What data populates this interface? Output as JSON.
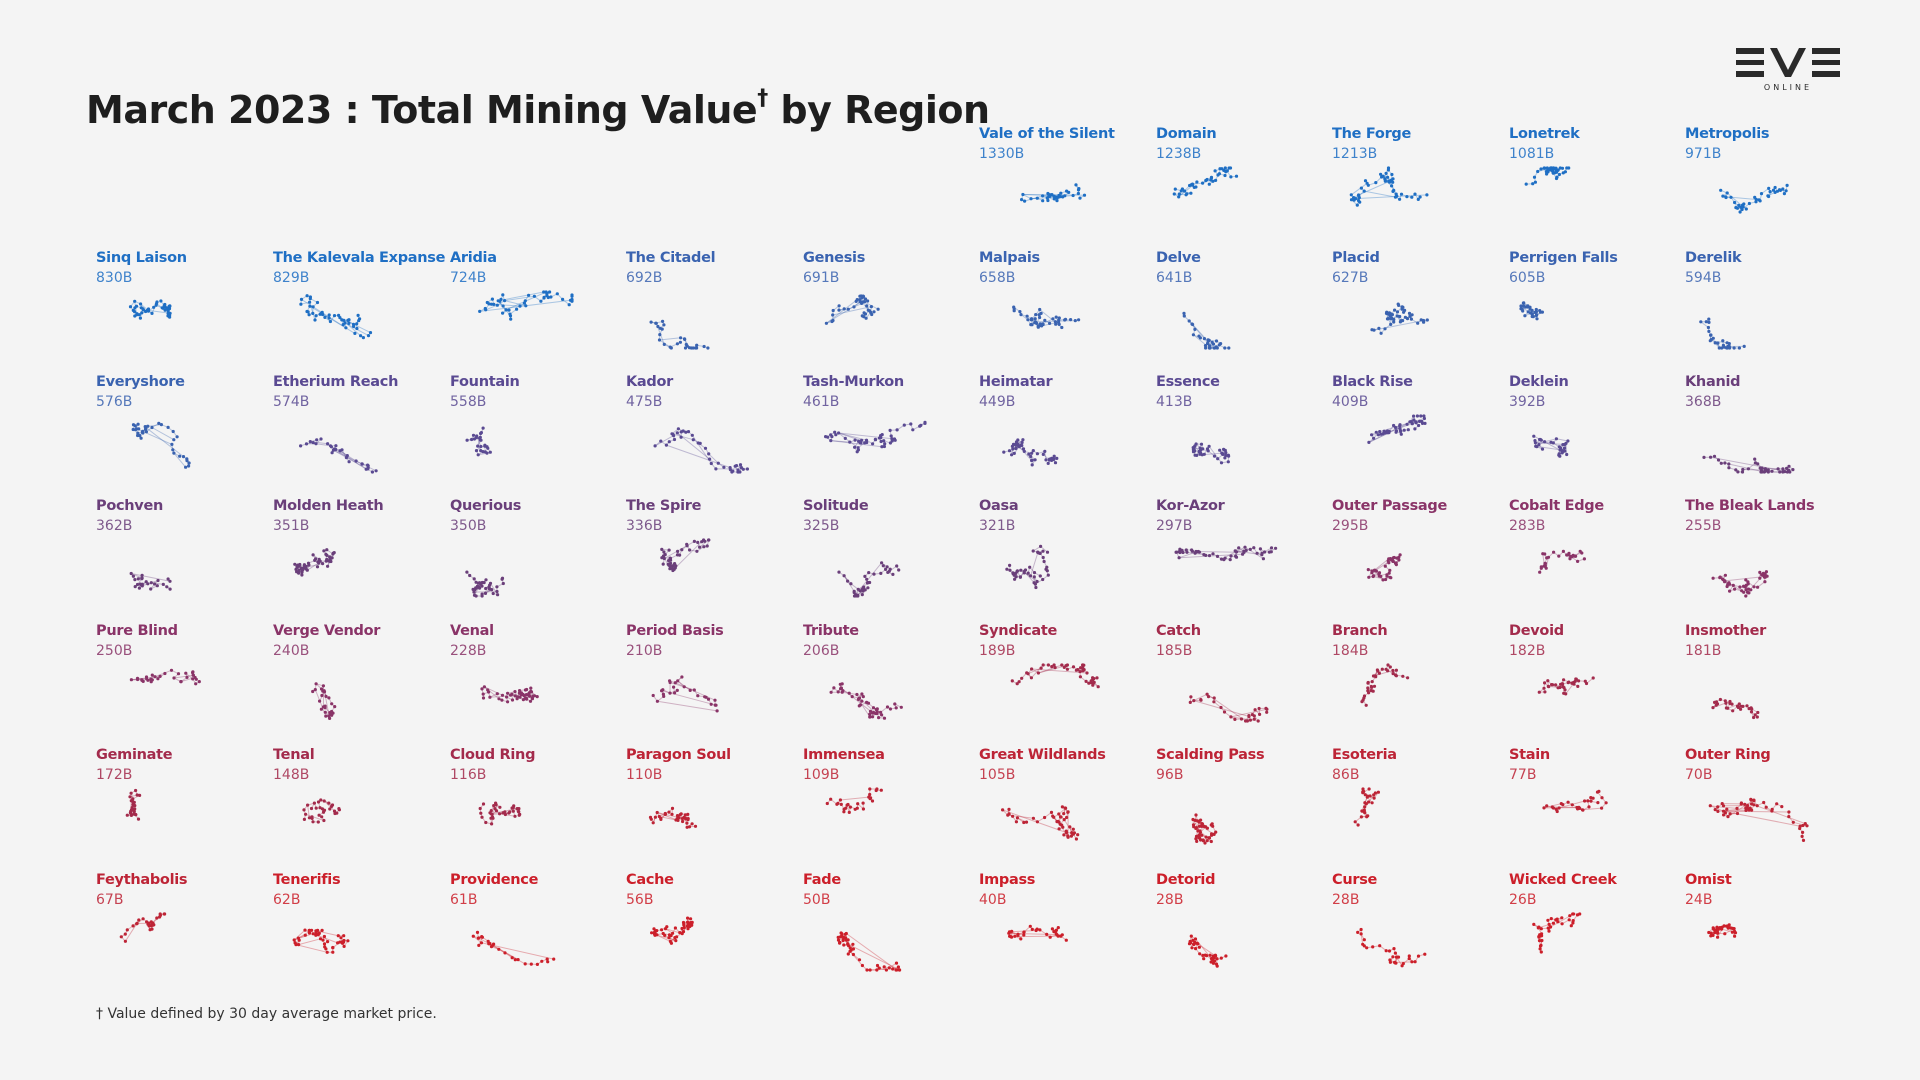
{
  "title": {
    "main": "March 2023 : Total Mining Value",
    "dagger": "†",
    "tail": " by Region"
  },
  "logo": {
    "text": "EVE",
    "sub": "ONLINE",
    "name": "eve-online-logo"
  },
  "footnote": "† Value defined by 30 day average market price.",
  "colors": {
    "background": "#f4f4f4",
    "title": "#1e1e1e",
    "scale": [
      "#1f6fc4",
      "#3a63b0",
      "#5a4a92",
      "#6a3f7a",
      "#8a3468",
      "#a32b4c",
      "#bd2436",
      "#cc1f2a"
    ],
    "edge_opacity": 0.35
  },
  "chart_data": {
    "type": "small-multiples",
    "title": "March 2023 : Total Mining Value† by Region",
    "unit": "B",
    "regions": [
      {
        "name": "Vale of the Silent",
        "value_label": "1330B",
        "value": 1330
      },
      {
        "name": "Domain",
        "value_label": "1238B",
        "value": 1238
      },
      {
        "name": "The Forge",
        "value_label": "1213B",
        "value": 1213
      },
      {
        "name": "Lonetrek",
        "value_label": "1081B",
        "value": 1081
      },
      {
        "name": "Metropolis",
        "value_label": "971B",
        "value": 971
      },
      {
        "name": "Sinq Laison",
        "value_label": "830B",
        "value": 830
      },
      {
        "name": "The Kalevala Expanse",
        "value_label": "829B",
        "value": 829
      },
      {
        "name": "Aridia",
        "value_label": "724B",
        "value": 724
      },
      {
        "name": "The Citadel",
        "value_label": "692B",
        "value": 692
      },
      {
        "name": "Genesis",
        "value_label": "691B",
        "value": 691
      },
      {
        "name": "Malpais",
        "value_label": "658B",
        "value": 658
      },
      {
        "name": "Delve",
        "value_label": "641B",
        "value": 641
      },
      {
        "name": "Placid",
        "value_label": "627B",
        "value": 627
      },
      {
        "name": "Perrigen Falls",
        "value_label": "605B",
        "value": 605
      },
      {
        "name": "Derelik",
        "value_label": "594B",
        "value": 594
      },
      {
        "name": "Everyshore",
        "value_label": "576B",
        "value": 576
      },
      {
        "name": "Etherium Reach",
        "value_label": "574B",
        "value": 574
      },
      {
        "name": "Fountain",
        "value_label": "558B",
        "value": 558
      },
      {
        "name": "Kador",
        "value_label": "475B",
        "value": 475
      },
      {
        "name": "Tash-Murkon",
        "value_label": "461B",
        "value": 461
      },
      {
        "name": "Heimatar",
        "value_label": "449B",
        "value": 449
      },
      {
        "name": "Essence",
        "value_label": "413B",
        "value": 413
      },
      {
        "name": "Black Rise",
        "value_label": "409B",
        "value": 409
      },
      {
        "name": "Deklein",
        "value_label": "392B",
        "value": 392
      },
      {
        "name": "Khanid",
        "value_label": "368B",
        "value": 368
      },
      {
        "name": "Pochven",
        "value_label": "362B",
        "value": 362
      },
      {
        "name": "Molden Heath",
        "value_label": "351B",
        "value": 351
      },
      {
        "name": "Querious",
        "value_label": "350B",
        "value": 350
      },
      {
        "name": "The Spire",
        "value_label": "336B",
        "value": 336
      },
      {
        "name": "Solitude",
        "value_label": "325B",
        "value": 325
      },
      {
        "name": "Oasa",
        "value_label": "321B",
        "value": 321
      },
      {
        "name": "Kor-Azor",
        "value_label": "297B",
        "value": 297
      },
      {
        "name": "Outer Passage",
        "value_label": "295B",
        "value": 295
      },
      {
        "name": "Cobalt Edge",
        "value_label": "283B",
        "value": 283
      },
      {
        "name": "The Bleak Lands",
        "value_label": "255B",
        "value": 255
      },
      {
        "name": "Pure Blind",
        "value_label": "250B",
        "value": 250
      },
      {
        "name": "Verge Vendor",
        "value_label": "240B",
        "value": 240
      },
      {
        "name": "Venal",
        "value_label": "228B",
        "value": 228
      },
      {
        "name": "Period Basis",
        "value_label": "210B",
        "value": 210
      },
      {
        "name": "Tribute",
        "value_label": "206B",
        "value": 206
      },
      {
        "name": "Syndicate",
        "value_label": "189B",
        "value": 189
      },
      {
        "name": "Catch",
        "value_label": "185B",
        "value": 185
      },
      {
        "name": "Branch",
        "value_label": "184B",
        "value": 184
      },
      {
        "name": "Devoid",
        "value_label": "182B",
        "value": 182
      },
      {
        "name": "Insmother",
        "value_label": "181B",
        "value": 181
      },
      {
        "name": "Geminate",
        "value_label": "172B",
        "value": 172
      },
      {
        "name": "Tenal",
        "value_label": "148B",
        "value": 148
      },
      {
        "name": "Cloud Ring",
        "value_label": "116B",
        "value": 116
      },
      {
        "name": "Paragon Soul",
        "value_label": "110B",
        "value": 110
      },
      {
        "name": "Immensea",
        "value_label": "109B",
        "value": 109
      },
      {
        "name": "Great Wildlands",
        "value_label": "105B",
        "value": 105
      },
      {
        "name": "Scalding Pass",
        "value_label": "96B",
        "value": 96
      },
      {
        "name": "Esoteria",
        "value_label": "86B",
        "value": 86
      },
      {
        "name": "Stain",
        "value_label": "77B",
        "value": 77
      },
      {
        "name": "Outer Ring",
        "value_label": "70B",
        "value": 70
      },
      {
        "name": "Feythabolis",
        "value_label": "67B",
        "value": 67
      },
      {
        "name": "Tenerifis",
        "value_label": "62B",
        "value": 62
      },
      {
        "name": "Providence",
        "value_label": "61B",
        "value": 61
      },
      {
        "name": "Cache",
        "value_label": "56B",
        "value": 56
      },
      {
        "name": "Fade",
        "value_label": "50B",
        "value": 50
      },
      {
        "name": "Impass",
        "value_label": "40B",
        "value": 40
      },
      {
        "name": "Detorid",
        "value_label": "28B",
        "value": 28
      },
      {
        "name": "Curse",
        "value_label": "28B",
        "value": 28
      },
      {
        "name": "Wicked Creek",
        "value_label": "26B",
        "value": 26
      },
      {
        "name": "Omist",
        "value_label": "24B",
        "value": 24
      }
    ]
  }
}
